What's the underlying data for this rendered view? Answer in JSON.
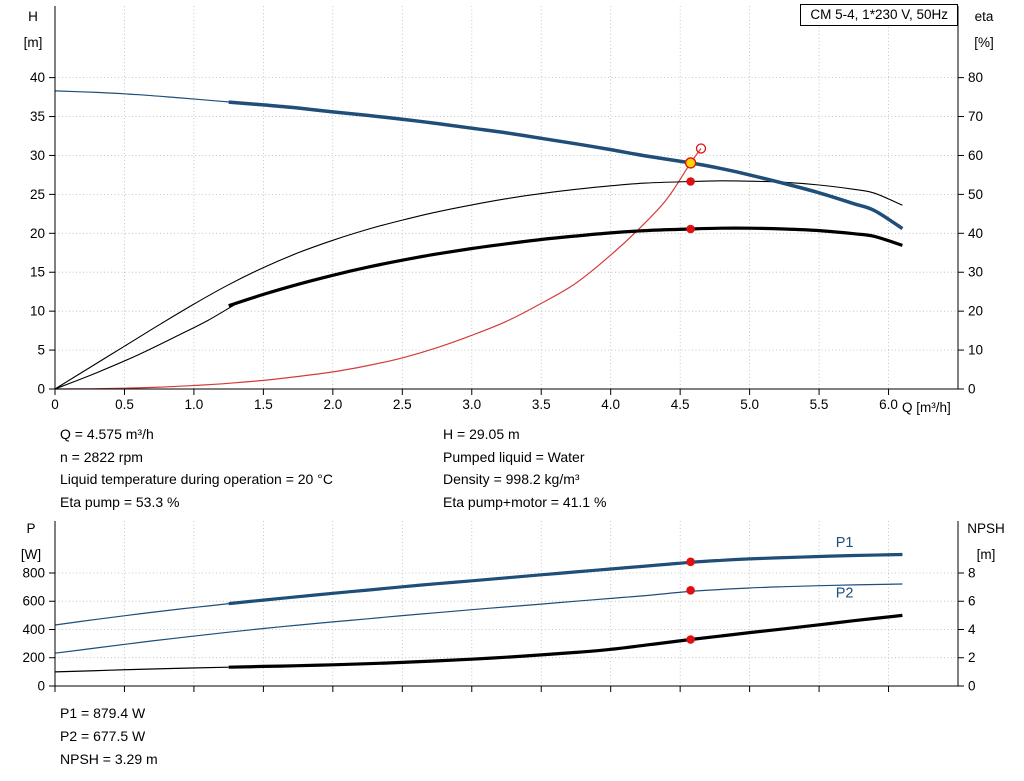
{
  "title_box": "CM 5-4, 1*230 V, 50Hz",
  "colors": {
    "blue": "#1f4e79",
    "black": "#000000",
    "red": "#d43c3c",
    "marker_red": "#e01010",
    "marker_yellow": "#ffd400",
    "grid": "#b8b8b8",
    "axis": "#000000"
  },
  "axis_labels": {
    "h": "H",
    "h_unit": "[m]",
    "eta": "eta",
    "eta_unit": "[%]",
    "q": "Q [m³/h]",
    "p": "P",
    "p_unit": "[W]",
    "npsh": "NPSH",
    "npsh_unit": "[m]"
  },
  "info_top_left": [
    "Q = 4.575 m³/h",
    "n = 2822 rpm",
    "Liquid temperature during operation = 20 °C",
    "Eta pump = 53.3 %"
  ],
  "info_top_right": [
    "H = 29.05 m",
    "Pumped liquid = Water",
    "Density = 998.2 kg/m³",
    "Eta pump+motor = 41.1 %"
  ],
  "info_bottom": [
    "P1 = 879.4 W",
    "P2 = 677.5 W",
    "NPSH = 3.29 m"
  ],
  "chart_data": [
    {
      "type": "line",
      "title": "CM 5-4, 1*230 V, 50Hz",
      "x_axis": {
        "label": "Q [m³/h]",
        "min": 0,
        "max": 6.5,
        "ticks": [
          0,
          0.5,
          1,
          1.5,
          2,
          2.5,
          3,
          3.5,
          4,
          4.5,
          5,
          5.5,
          6
        ],
        "tick_labels": [
          "0",
          "0.5",
          "1.0",
          "1.5",
          "2.0",
          "2.5",
          "3.0",
          "3.5",
          "4.0",
          "4.5",
          "5.0",
          "5.5",
          "6.0"
        ],
        "show_labels": true
      },
      "y_left": {
        "label": "H [m]",
        "min": 0,
        "max": 49.2,
        "ticks": [
          0,
          5,
          10,
          15,
          20,
          25,
          30,
          35,
          40
        ],
        "tick_labels": [
          "0",
          "5",
          "10",
          "15",
          "20",
          "25",
          "30",
          "35",
          "40"
        ]
      },
      "y_right": {
        "label": "eta [%]",
        "min": 0,
        "max": 98.4,
        "ticks": [
          0,
          10,
          20,
          30,
          40,
          50,
          60,
          70,
          80
        ],
        "tick_labels": [
          "0",
          "10",
          "20",
          "30",
          "40",
          "50",
          "60",
          "70",
          "80"
        ]
      },
      "grid": true,
      "series": [
        {
          "name": "Duty point curve",
          "axis": "left",
          "color": "red",
          "width": 1.2,
          "points": [
            [
              0,
              0
            ],
            [
              0.25,
              0.03
            ],
            [
              0.5,
              0.1
            ],
            [
              0.75,
              0.24
            ],
            [
              1,
              0.45
            ],
            [
              1.25,
              0.73
            ],
            [
              1.5,
              1.1
            ],
            [
              1.75,
              1.6
            ],
            [
              2,
              2.2
            ],
            [
              2.25,
              3.0
            ],
            [
              2.5,
              4.0
            ],
            [
              2.75,
              5.3
            ],
            [
              3,
              6.9
            ],
            [
              3.25,
              8.7
            ],
            [
              3.5,
              11.0
            ],
            [
              3.75,
              13.6
            ],
            [
              4,
              17.2
            ],
            [
              4.2,
              20.5
            ],
            [
              4.4,
              24.3
            ],
            [
              4.575,
              29.05
            ],
            [
              4.65,
              30.9
            ]
          ]
        },
        {
          "name": "Eta pump",
          "axis": "right",
          "color": "black",
          "width": 1.1,
          "points": [
            [
              0,
              0
            ],
            [
              0.25,
              5.5
            ],
            [
              0.5,
              11
            ],
            [
              0.75,
              16.5
            ],
            [
              1,
              21.8
            ],
            [
              1.25,
              26.8
            ],
            [
              1.5,
              31.2
            ],
            [
              1.75,
              35
            ],
            [
              2,
              38.2
            ],
            [
              2.25,
              41
            ],
            [
              2.5,
              43.4
            ],
            [
              2.75,
              45.5
            ],
            [
              3,
              47.3
            ],
            [
              3.25,
              48.9
            ],
            [
              3.5,
              50.2
            ],
            [
              3.75,
              51.3
            ],
            [
              4,
              52.2
            ],
            [
              4.25,
              52.9
            ],
            [
              4.575,
              53.3
            ],
            [
              4.8,
              53.5
            ],
            [
              5,
              53.4
            ],
            [
              5.25,
              53.1
            ],
            [
              5.5,
              52.4
            ],
            [
              5.75,
              51.3
            ],
            [
              5.9,
              50.3
            ],
            [
              6.1,
              47.2
            ]
          ]
        },
        {
          "name": "Eta pump+motor (below min flow)",
          "axis": "right",
          "color": "black",
          "width": 1.1,
          "points": [
            [
              0,
              0
            ],
            [
              0.3,
              4.2
            ],
            [
              0.6,
              8.8
            ],
            [
              0.9,
              14.0
            ],
            [
              1.1,
              17.6
            ],
            [
              1.3,
              21.8
            ]
          ]
        },
        {
          "name": "Eta pump+motor",
          "axis": "right",
          "color": "black",
          "width": 3.2,
          "points": [
            [
              1.25,
              21.4
            ],
            [
              1.5,
              24.3
            ],
            [
              1.75,
              26.9
            ],
            [
              2,
              29.2
            ],
            [
              2.25,
              31.3
            ],
            [
              2.5,
              33.1
            ],
            [
              2.75,
              34.7
            ],
            [
              3,
              36.1
            ],
            [
              3.25,
              37.3
            ],
            [
              3.5,
              38.4
            ],
            [
              3.75,
              39.3
            ],
            [
              4,
              40.1
            ],
            [
              4.25,
              40.7
            ],
            [
              4.575,
              41.1
            ],
            [
              4.8,
              41.3
            ],
            [
              5,
              41.3
            ],
            [
              5.25,
              41.1
            ],
            [
              5.5,
              40.7
            ],
            [
              5.75,
              39.9
            ],
            [
              5.9,
              39.2
            ],
            [
              6.1,
              36.9
            ]
          ]
        },
        {
          "name": "QH curve (below min flow)",
          "axis": "left",
          "color": "blue",
          "width": 1.2,
          "points": [
            [
              0,
              38.3
            ],
            [
              0.3,
              38.1
            ],
            [
              0.6,
              37.8
            ],
            [
              0.9,
              37.4
            ],
            [
              1.1,
              37.1
            ],
            [
              1.3,
              36.8
            ]
          ]
        },
        {
          "name": "QH curve",
          "axis": "left",
          "color": "blue",
          "width": 3.5,
          "points": [
            [
              1.25,
              36.85
            ],
            [
              1.5,
              36.5
            ],
            [
              1.75,
              36.1
            ],
            [
              2,
              35.6
            ],
            [
              2.25,
              35.15
            ],
            [
              2.5,
              34.65
            ],
            [
              2.75,
              34.1
            ],
            [
              3,
              33.5
            ],
            [
              3.25,
              32.9
            ],
            [
              3.5,
              32.2
            ],
            [
              3.75,
              31.5
            ],
            [
              4,
              30.75
            ],
            [
              4.25,
              29.95
            ],
            [
              4.575,
              29.05
            ],
            [
              4.8,
              28.3
            ],
            [
              5,
              27.5
            ],
            [
              5.25,
              26.4
            ],
            [
              5.5,
              25.2
            ],
            [
              5.75,
              23.8
            ],
            [
              5.9,
              22.9
            ],
            [
              6.1,
              20.6
            ]
          ]
        }
      ],
      "markers": [
        {
          "name": "duty-point",
          "style": "yellow",
          "axis": "left",
          "x": 4.575,
          "y": 29.05
        },
        {
          "name": "eta-pump-point",
          "style": "red",
          "axis": "right",
          "x": 4.575,
          "y": 53.3
        },
        {
          "name": "eta-pump-motor-point",
          "style": "red",
          "axis": "right",
          "x": 4.575,
          "y": 41.1
        },
        {
          "name": "rated-point",
          "style": "open",
          "axis": "left",
          "x": 4.65,
          "y": 30.9
        }
      ]
    },
    {
      "type": "line",
      "x_axis": {
        "label": "",
        "min": 0,
        "max": 6.5,
        "ticks": [
          0,
          0.5,
          1,
          1.5,
          2,
          2.5,
          3,
          3.5,
          4,
          4.5,
          5,
          5.5,
          6
        ],
        "tick_labels": [
          "0",
          "0.5",
          "1.0",
          "1.5",
          "2.0",
          "2.5",
          "3.0",
          "3.5",
          "4.0",
          "4.5",
          "5.0",
          "5.5",
          "6.0"
        ],
        "show_labels": false
      },
      "y_left": {
        "label": "P [W]",
        "min": 0,
        "max": 1168,
        "ticks": [
          0,
          200,
          400,
          600,
          800
        ],
        "tick_labels": [
          "0",
          "200",
          "400",
          "600",
          "800"
        ]
      },
      "y_right": {
        "label": "NPSH [m]",
        "min": 0,
        "max": 11.68,
        "ticks": [
          0,
          2,
          4,
          6,
          8
        ],
        "tick_labels": [
          "0",
          "2",
          "4",
          "6",
          "8"
        ]
      },
      "grid": true,
      "series": [
        {
          "name": "P1 (below min flow)",
          "axis": "left",
          "color": "blue",
          "width": 1.2,
          "points": [
            [
              0,
              432
            ],
            [
              0.3,
              472
            ],
            [
              0.6,
              510
            ],
            [
              0.9,
              545
            ],
            [
              1.1,
              566
            ],
            [
              1.3,
              588
            ]
          ]
        },
        {
          "name": "P1",
          "axis": "left",
          "color": "blue",
          "width": 3.2,
          "points": [
            [
              1.25,
              583
            ],
            [
              1.5,
              608
            ],
            [
              1.75,
              632
            ],
            [
              2,
              656
            ],
            [
              2.25,
              679
            ],
            [
              2.5,
              702
            ],
            [
              2.75,
              724
            ],
            [
              3,
              745
            ],
            [
              3.25,
              766
            ],
            [
              3.5,
              787
            ],
            [
              3.75,
              808
            ],
            [
              4,
              828
            ],
            [
              4.25,
              849
            ],
            [
              4.4,
              861
            ],
            [
              4.575,
              876
            ],
            [
              4.8,
              890
            ],
            [
              5,
              900
            ],
            [
              5.25,
              909
            ],
            [
              5.5,
              917
            ],
            [
              5.75,
              924
            ],
            [
              6.1,
              931
            ]
          ]
        },
        {
          "name": "P2",
          "axis": "left",
          "color": "blue",
          "width": 1.2,
          "points": [
            [
              0,
              232
            ],
            [
              0.3,
              270
            ],
            [
              0.6,
              307
            ],
            [
              0.9,
              342
            ],
            [
              1.25,
              381
            ],
            [
              1.5,
              407
            ],
            [
              1.75,
              431
            ],
            [
              2,
              454
            ],
            [
              2.25,
              476
            ],
            [
              2.5,
              498
            ],
            [
              2.75,
              519
            ],
            [
              3,
              540
            ],
            [
              3.25,
              560
            ],
            [
              3.5,
              580
            ],
            [
              3.75,
              600
            ],
            [
              4,
              620
            ],
            [
              4.25,
              640
            ],
            [
              4.575,
              670
            ],
            [
              4.8,
              684
            ],
            [
              5,
              694
            ],
            [
              5.25,
              703
            ],
            [
              5.5,
              710
            ],
            [
              5.75,
              716
            ],
            [
              6.1,
              722
            ]
          ]
        },
        {
          "name": "NPSH (below min flow)",
          "axis": "right",
          "color": "black",
          "width": 1.2,
          "points": [
            [
              0,
              1.0
            ],
            [
              0.4,
              1.12
            ],
            [
              0.8,
              1.23
            ],
            [
              1.25,
              1.33
            ]
          ]
        },
        {
          "name": "NPSH",
          "axis": "right",
          "color": "black",
          "width": 3.2,
          "points": [
            [
              1.25,
              1.33
            ],
            [
              1.5,
              1.39
            ],
            [
              1.75,
              1.44
            ],
            [
              2,
              1.5
            ],
            [
              2.25,
              1.58
            ],
            [
              2.5,
              1.67
            ],
            [
              2.75,
              1.78
            ],
            [
              3,
              1.9
            ],
            [
              3.25,
              2.04
            ],
            [
              3.5,
              2.2
            ],
            [
              3.75,
              2.38
            ],
            [
              4,
              2.6
            ],
            [
              4.3,
              2.95
            ],
            [
              4.575,
              3.29
            ],
            [
              4.8,
              3.55
            ],
            [
              5,
              3.78
            ],
            [
              5.25,
              4.05
            ],
            [
              5.5,
              4.33
            ],
            [
              5.75,
              4.62
            ],
            [
              6.1,
              5.0
            ]
          ]
        }
      ],
      "markers": [
        {
          "name": "p1-point",
          "style": "red",
          "axis": "left",
          "x": 4.575,
          "y": 879.4
        },
        {
          "name": "p2-point",
          "style": "red",
          "axis": "left",
          "x": 4.575,
          "y": 677.5
        },
        {
          "name": "npsh-point",
          "style": "red",
          "axis": "right",
          "x": 4.575,
          "y": 3.29
        }
      ],
      "curve_labels": [
        {
          "text": "P1",
          "x": 5.62,
          "y": 984,
          "axis": "left"
        },
        {
          "text": "P2",
          "x": 5.62,
          "y": 628,
          "axis": "left"
        }
      ]
    }
  ]
}
